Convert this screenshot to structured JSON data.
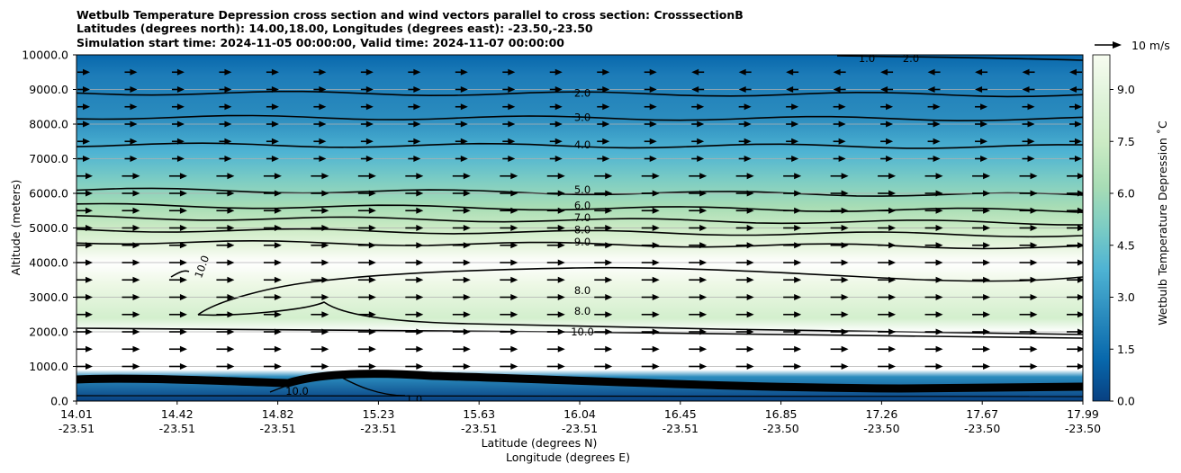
{
  "chart_data": {
    "type": "contour",
    "title_lines": [
      "Wetbulb Temperature Depression cross section and wind vectors parallel to cross section: CrosssectionB",
      "Latitudes (degrees north): 14.00,18.00, Longitudes (degrees east): -23.50,-23.50",
      "Simulation start time: 2024-11-05 00:00:00, Valid time: 2024-11-07 00:00:00"
    ],
    "ylabel": "Altitude (meters)",
    "xlabel_lines": [
      "Latitude (degrees N)",
      "Longitude (degrees E)"
    ],
    "ylim": [
      0,
      10000
    ],
    "y_ticks": [
      "0.0",
      "1000.0",
      "2000.0",
      "3000.0",
      "4000.0",
      "5000.0",
      "6000.0",
      "7000.0",
      "8000.0",
      "9000.0",
      "10000.0"
    ],
    "x_ticks": [
      {
        "lat": "14.01",
        "lon": "-23.51"
      },
      {
        "lat": "14.42",
        "lon": "-23.51"
      },
      {
        "lat": "14.82",
        "lon": "-23.51"
      },
      {
        "lat": "15.23",
        "lon": "-23.51"
      },
      {
        "lat": "15.63",
        "lon": "-23.51"
      },
      {
        "lat": "16.04",
        "lon": "-23.51"
      },
      {
        "lat": "16.45",
        "lon": "-23.51"
      },
      {
        "lat": "16.85",
        "lon": "-23.50"
      },
      {
        "lat": "17.26",
        "lon": "-23.50"
      },
      {
        "lat": "17.67",
        "lon": "-23.50"
      },
      {
        "lat": "17.99",
        "lon": "-23.50"
      }
    ],
    "grid": "horizontal",
    "colorbar": {
      "label": "Wetbulb Temperature Depression ˚C",
      "range": [
        0.0,
        10.0
      ],
      "ticks": [
        "0.0",
        "1.5",
        "3.0",
        "4.5",
        "6.0",
        "7.5",
        "9.0"
      ],
      "colormap": [
        "#084081",
        "#0868ac",
        "#2b8cbe",
        "#4eb3d3",
        "#7bccc4",
        "#a8ddb5",
        "#ccebc5",
        "#e0f3db",
        "#f7fcf0"
      ]
    },
    "quiver_key": "10 m/s",
    "contour_labels": [
      {
        "text": "2.0",
        "alt": 8900
      },
      {
        "text": "3.0",
        "alt": 8200
      },
      {
        "text": "4.0",
        "alt": 7400
      },
      {
        "text": "5.0",
        "alt": 6100
      },
      {
        "text": "6.0",
        "alt": 5650
      },
      {
        "text": "7.0",
        "alt": 5300
      },
      {
        "text": "8.0",
        "alt": 4950
      },
      {
        "text": "9.0",
        "alt": 4600
      },
      {
        "text": "10.0",
        "alt": 3950
      },
      {
        "text": "8.0",
        "alt": 3200
      },
      {
        "text": "8.0",
        "alt": 2600
      },
      {
        "text": "10.0",
        "alt": 2000
      },
      {
        "text": "1.0",
        "alt": 9800
      },
      {
        "text": "2.0",
        "alt": 9800
      },
      {
        "text": "10.0",
        "alt": 400
      },
      {
        "text": "1.0",
        "alt": 100
      }
    ],
    "contour_levels": [
      1.0,
      2.0,
      3.0,
      4.0,
      5.0,
      6.0,
      7.0,
      8.0,
      9.0,
      10.0
    ],
    "wind_rows": [
      {
        "alt": 9500,
        "dir": "mixed"
      },
      {
        "alt": 9000,
        "dir": "mixed"
      },
      {
        "alt": 8500,
        "dir": "east"
      },
      {
        "alt": 8000,
        "dir": "east"
      },
      {
        "alt": 7500,
        "dir": "east"
      },
      {
        "alt": 7000,
        "dir": "east"
      },
      {
        "alt": 6500,
        "dir": "east"
      },
      {
        "alt": 6000,
        "dir": "east"
      },
      {
        "alt": 5500,
        "dir": "east"
      },
      {
        "alt": 5000,
        "dir": "east"
      },
      {
        "alt": 4500,
        "dir": "east"
      },
      {
        "alt": 4000,
        "dir": "east"
      },
      {
        "alt": 3500,
        "dir": "east"
      },
      {
        "alt": 3000,
        "dir": "east"
      },
      {
        "alt": 2500,
        "dir": "east"
      },
      {
        "alt": 2000,
        "dir": "east"
      },
      {
        "alt": 1500,
        "dir": "east"
      },
      {
        "alt": 1000,
        "dir": "east"
      }
    ]
  }
}
